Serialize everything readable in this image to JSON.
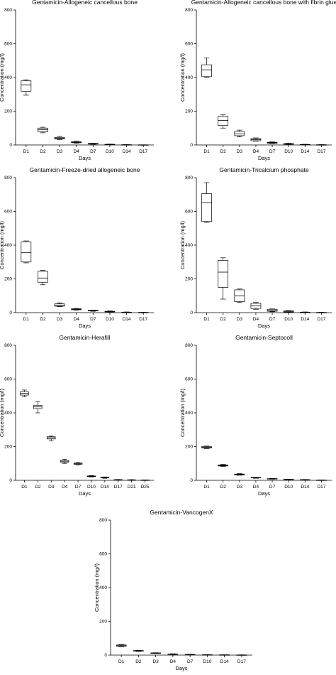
{
  "chart_data": [
    {
      "type": "box",
      "title": "Gentamicin-Allogeneic cancellous bone",
      "xlabel": "Days",
      "ylabel": "Concentration (mg/l)",
      "ylim": [
        0,
        800
      ],
      "yticks": [
        0,
        200,
        400,
        600,
        800
      ],
      "categories": [
        "D1",
        "D2",
        "D3",
        "D4",
        "D7",
        "D10",
        "D14",
        "D17"
      ],
      "boxes": [
        {
          "min": 295,
          "q1": 318,
          "median": 355,
          "q3": 380,
          "max": 385
        },
        {
          "min": 72,
          "q1": 78,
          "median": 90,
          "q3": 100,
          "max": 105
        },
        {
          "min": 32,
          "q1": 35,
          "median": 40,
          "q3": 45,
          "max": 50
        },
        {
          "min": 10,
          "q1": 13,
          "median": 16,
          "q3": 19,
          "max": 22
        },
        {
          "min": 4,
          "q1": 5,
          "median": 7,
          "q3": 9,
          "max": 10
        },
        {
          "min": 1,
          "q1": 2,
          "median": 3,
          "q3": 4,
          "max": 5
        },
        {
          "min": 0,
          "q1": 0.5,
          "median": 1,
          "q3": 1.5,
          "max": 2
        },
        {
          "min": 0,
          "q1": 0.2,
          "median": 0.5,
          "q3": 0.8,
          "max": 1
        }
      ]
    },
    {
      "type": "box",
      "title": "Gentamicin-Allogeneic cancellous bone with fibrin glue",
      "xlabel": "Days",
      "ylabel": "Concentration (mg/l)",
      "ylim": [
        0,
        800
      ],
      "yticks": [
        0,
        200,
        400,
        600,
        800
      ],
      "categories": [
        "D1",
        "D2",
        "D3",
        "D4",
        "D7",
        "D10",
        "D14",
        "D17"
      ],
      "boxes": [
        {
          "min": 400,
          "q1": 405,
          "median": 445,
          "q3": 475,
          "max": 515
        },
        {
          "min": 100,
          "q1": 115,
          "median": 145,
          "q3": 170,
          "max": 180
        },
        {
          "min": 48,
          "q1": 55,
          "median": 65,
          "q3": 80,
          "max": 88
        },
        {
          "min": 22,
          "q1": 25,
          "median": 32,
          "q3": 38,
          "max": 42
        },
        {
          "min": 8,
          "q1": 10,
          "median": 13,
          "q3": 16,
          "max": 18
        },
        {
          "min": 3,
          "q1": 4,
          "median": 6,
          "q3": 8,
          "max": 10
        },
        {
          "min": 0,
          "q1": 1,
          "median": 2,
          "q3": 3,
          "max": 4
        },
        {
          "min": 0,
          "q1": 0.3,
          "median": 0.8,
          "q3": 1.2,
          "max": 2
        }
      ]
    },
    {
      "type": "box",
      "title": "Gentamicin-Freeze-dried allogeneic bone",
      "xlabel": "Days",
      "ylabel": "Concentration (mg/l)",
      "ylim": [
        0,
        800
      ],
      "yticks": [
        0,
        200,
        400,
        600,
        800
      ],
      "categories": [
        "D1",
        "D2",
        "D3",
        "D4",
        "D7",
        "D10",
        "D14",
        "D17"
      ],
      "boxes": [
        {
          "min": 295,
          "q1": 300,
          "median": 355,
          "q3": 420,
          "max": 425
        },
        {
          "min": 165,
          "q1": 180,
          "median": 205,
          "q3": 245,
          "max": 250
        },
        {
          "min": 35,
          "q1": 38,
          "median": 45,
          "q3": 52,
          "max": 58
        },
        {
          "min": 15,
          "q1": 17,
          "median": 20,
          "q3": 23,
          "max": 25
        },
        {
          "min": 8,
          "q1": 10,
          "median": 12,
          "q3": 14,
          "max": 15
        },
        {
          "min": 3,
          "q1": 4,
          "median": 6,
          "q3": 8,
          "max": 10
        },
        {
          "min": 0,
          "q1": 1,
          "median": 2,
          "q3": 3,
          "max": 4
        },
        {
          "min": 0,
          "q1": 0.5,
          "median": 1,
          "q3": 1.5,
          "max": 2
        }
      ]
    },
    {
      "type": "box",
      "title": "Gentamicin-Tricalcium phosphate",
      "xlabel": "Days",
      "ylabel": "Concentration (mg/l)",
      "ylim": [
        0,
        800
      ],
      "yticks": [
        0,
        200,
        400,
        600,
        800
      ],
      "categories": [
        "D1",
        "D2",
        "D3",
        "D4",
        "D7",
        "D10",
        "D14",
        "D17"
      ],
      "boxes": [
        {
          "min": 535,
          "q1": 540,
          "median": 650,
          "q3": 705,
          "max": 770
        },
        {
          "min": 80,
          "q1": 150,
          "median": 240,
          "q3": 310,
          "max": 325
        },
        {
          "min": 60,
          "q1": 65,
          "median": 100,
          "q3": 135,
          "max": 140
        },
        {
          "min": 20,
          "q1": 25,
          "median": 40,
          "q3": 55,
          "max": 60
        },
        {
          "min": 5,
          "q1": 8,
          "median": 15,
          "q3": 20,
          "max": 22
        },
        {
          "min": 2,
          "q1": 3,
          "median": 6,
          "q3": 10,
          "max": 12
        },
        {
          "min": 0,
          "q1": 1,
          "median": 2,
          "q3": 3,
          "max": 4
        },
        {
          "min": 0,
          "q1": 0.3,
          "median": 0.8,
          "q3": 1.2,
          "max": 2
        }
      ]
    },
    {
      "type": "box",
      "title": "Gentamicin-Herafill",
      "xlabel": "Days",
      "ylabel": "Concentration (mg/l)",
      "ylim": [
        0,
        800
      ],
      "yticks": [
        0,
        200,
        400,
        600,
        800
      ],
      "categories": [
        "D1",
        "D2",
        "D3",
        "D4",
        "D7",
        "D10",
        "D14",
        "D17",
        "D21",
        "D25"
      ],
      "boxes": [
        {
          "min": 495,
          "q1": 505,
          "median": 515,
          "q3": 525,
          "max": 535
        },
        {
          "min": 400,
          "q1": 425,
          "median": 435,
          "q3": 445,
          "max": 465
        },
        {
          "min": 235,
          "q1": 245,
          "median": 252,
          "q3": 258,
          "max": 262
        },
        {
          "min": 100,
          "q1": 108,
          "median": 113,
          "q3": 118,
          "max": 125
        },
        {
          "min": 92,
          "q1": 95,
          "median": 98,
          "q3": 102,
          "max": 105
        },
        {
          "min": 20,
          "q1": 22,
          "median": 24,
          "q3": 26,
          "max": 28
        },
        {
          "min": 12,
          "q1": 14,
          "median": 16,
          "q3": 18,
          "max": 20
        },
        {
          "min": 1,
          "q1": 2,
          "median": 3,
          "q3": 4,
          "max": 5
        },
        {
          "min": 0,
          "q1": 1,
          "median": 2,
          "q3": 3,
          "max": 4
        },
        {
          "min": 0,
          "q1": 0.5,
          "median": 1,
          "q3": 1.5,
          "max": 2
        }
      ]
    },
    {
      "type": "box",
      "title": "Gentamicin-Septocoll",
      "xlabel": "Days",
      "ylabel": "Concentration (mg/l)",
      "ylim": [
        0,
        800
      ],
      "yticks": [
        0,
        200,
        400,
        600,
        800
      ],
      "categories": [
        "D1",
        "D2",
        "D3",
        "D4",
        "D7",
        "D10",
        "D14",
        "D17"
      ],
      "boxes": [
        {
          "min": 188,
          "q1": 192,
          "median": 196,
          "q3": 200,
          "max": 203
        },
        {
          "min": 82,
          "q1": 85,
          "median": 88,
          "q3": 91,
          "max": 95
        },
        {
          "min": 30,
          "q1": 32,
          "median": 34,
          "q3": 37,
          "max": 40
        },
        {
          "min": 12,
          "q1": 14,
          "median": 15,
          "q3": 17,
          "max": 18
        },
        {
          "min": 7,
          "q1": 8,
          "median": 9,
          "q3": 10,
          "max": 11
        },
        {
          "min": 3,
          "q1": 4,
          "median": 5,
          "q3": 6,
          "max": 7
        },
        {
          "min": 1,
          "q1": 2,
          "median": 3,
          "q3": 4,
          "max": 5
        },
        {
          "min": 0,
          "q1": 0.5,
          "median": 1,
          "q3": 1.5,
          "max": 2
        }
      ]
    },
    {
      "type": "box",
      "title": "Gentamicin-VancogenX",
      "xlabel": "Days",
      "ylabel": "Concentration (mg/l)",
      "ylim": [
        0,
        800
      ],
      "yticks": [
        0,
        200,
        400,
        600,
        800
      ],
      "categories": [
        "D1",
        "D2",
        "D3",
        "D4",
        "D7",
        "D10",
        "D14",
        "D17"
      ],
      "boxes": [
        {
          "min": 50,
          "q1": 53,
          "median": 56,
          "q3": 60,
          "max": 63
        },
        {
          "min": 22,
          "q1": 24,
          "median": 25,
          "q3": 27,
          "max": 28
        },
        {
          "min": 10,
          "q1": 11,
          "median": 12,
          "q3": 13,
          "max": 14
        },
        {
          "min": 4,
          "q1": 5,
          "median": 6,
          "q3": 7,
          "max": 8
        },
        {
          "min": 1,
          "q1": 2,
          "median": 3,
          "q3": 4,
          "max": 5
        },
        {
          "min": 0,
          "q1": 1,
          "median": 1.5,
          "q3": 2,
          "max": 3
        },
        {
          "min": 0,
          "q1": 0.5,
          "median": 1,
          "q3": 1.5,
          "max": 2
        },
        {
          "min": 0,
          "q1": 0.3,
          "median": 0.6,
          "q3": 1,
          "max": 1.5
        }
      ]
    }
  ]
}
